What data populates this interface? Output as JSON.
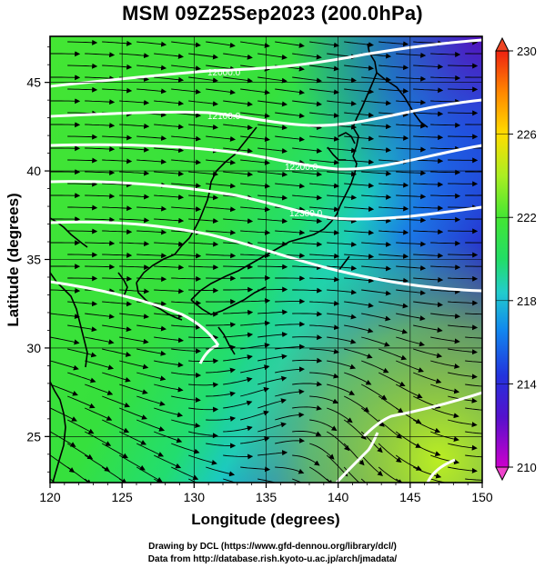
{
  "title": "MSM 09Z25Sep2023 (200.0hPa)",
  "x_axis": {
    "label": "Longitude (degrees)",
    "ticks": [
      "120",
      "125",
      "130",
      "135",
      "140",
      "145",
      "150"
    ],
    "range": [
      120,
      150
    ]
  },
  "y_axis": {
    "label": "Latitude (degrees)",
    "ticks": [
      "25",
      "30",
      "35",
      "40",
      "45"
    ],
    "range": [
      22.4,
      47.6
    ]
  },
  "colorbar": {
    "ticks": [
      "210",
      "214",
      "218",
      "222",
      "226",
      "230"
    ],
    "range": [
      210,
      230
    ],
    "colors": [
      "#cc00cc",
      "#3311cc",
      "#1177ee",
      "#22cccc",
      "#22dd66",
      "#44e633",
      "#aaee22",
      "#ffdd00",
      "#ff8800",
      "#ee2211"
    ]
  },
  "contour_labels": [
    "12000.0",
    "12100.0",
    "12200.0",
    "12300.0"
  ],
  "credits": {
    "line1": "Drawing by DCL (https://www.gfd-dennou.org/library/dcl/)",
    "line2": "Data from http://database.rish.kyoto-u.ac.jp/arch/jmadata/"
  }
}
